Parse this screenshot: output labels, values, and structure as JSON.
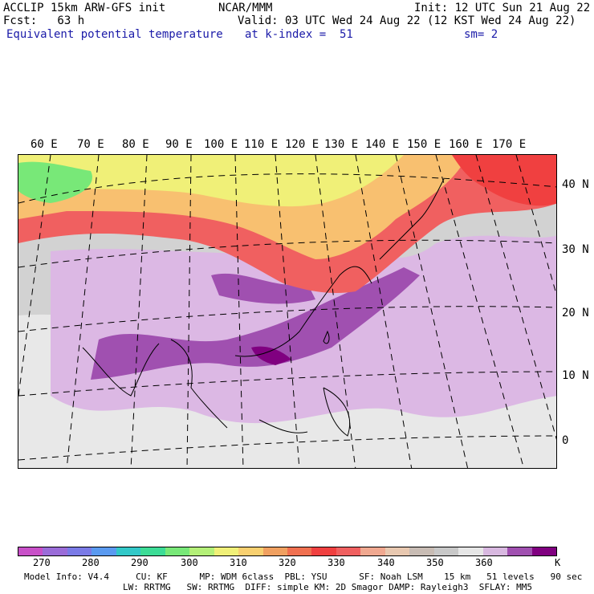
{
  "header": {
    "model_line": "ACCLIP 15km ARW-GFS init",
    "forecast_line": "Fcst:   63 h",
    "variable": "Equivalent potential temperature",
    "center": "NCAR/MMM",
    "valid": "Valid: 03 UTC Wed 24 Aug 22 (12 KST Wed 24 Aug 22)",
    "level": "at k-index =  51",
    "init": "Init: 12 UTC Sun 21 Aug 22",
    "smoothing": "sm= 2"
  },
  "map": {
    "lon_labels": [
      "60 E",
      "70 E",
      "80 E",
      "90 E",
      "100 E",
      "110 E",
      "120 E",
      "130 E",
      "140 E",
      "150 E",
      "160 E",
      "170 E"
    ],
    "lat_labels": [
      "40 N",
      "30 N",
      "20 N",
      "10 N",
      "0"
    ]
  },
  "colorbar": {
    "colors": [
      "#c850c8",
      "#9a6cd8",
      "#7a7ae6",
      "#5a9af0",
      "#32c8c8",
      "#3cdc96",
      "#78e878",
      "#b4f078",
      "#f0f078",
      "#f8d070",
      "#f0a060",
      "#f07050",
      "#f04040",
      "#f06060",
      "#f0a890",
      "#e8c8b0",
      "#c8bcb4",
      "#c8c8c8",
      "#e6e6e6",
      "#d8b8e0",
      "#a050b0",
      "#800080"
    ],
    "tick_labels": [
      "270",
      "280",
      "290",
      "300",
      "310",
      "320",
      "330",
      "340",
      "350",
      "360"
    ],
    "unit": "K"
  },
  "footer": {
    "line1": "Model Info: V4.4     CU: KF      MP: WDM 6class  PBL: YSU      SF: Noah LSM    15 km   51 levels   90 sec",
    "line2": "LW: RRTMG   SW: RRTMG  DIFF: simple KM: 2D Smagor DAMP: Rayleigh3  SFLAY: MM5"
  }
}
